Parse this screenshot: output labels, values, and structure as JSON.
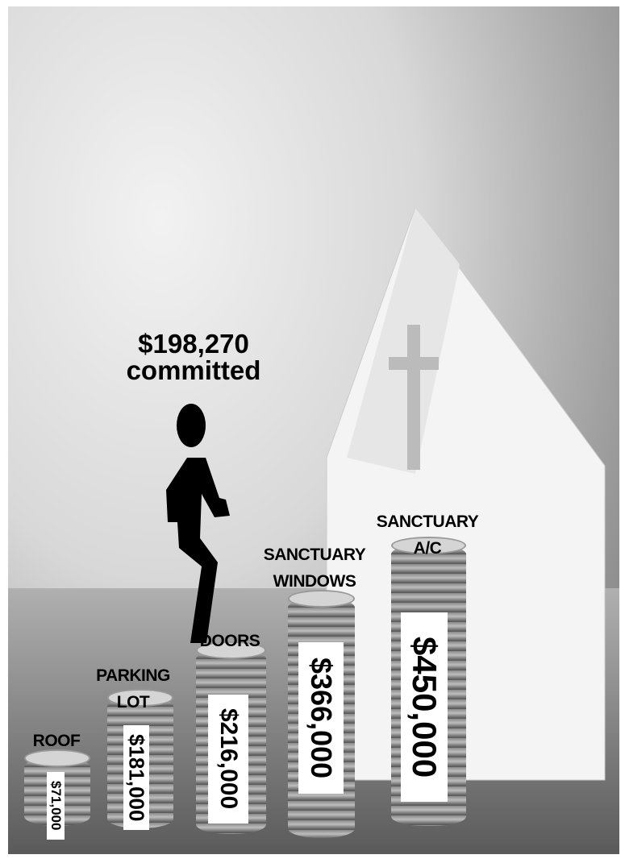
{
  "headline": {
    "amount": "$198,270",
    "label": "committed"
  },
  "goals": [
    {
      "name": "ROOF",
      "amount": "$71,000"
    },
    {
      "name": "PARKING LOT",
      "amount": "$181,000"
    },
    {
      "name": "DOORS",
      "amount": "$216,000"
    },
    {
      "name": "SANCTUARY WINDOWS",
      "amount": "$366,000"
    },
    {
      "name": "SANCTUARY A/C",
      "amount": "$450,000"
    }
  ]
}
